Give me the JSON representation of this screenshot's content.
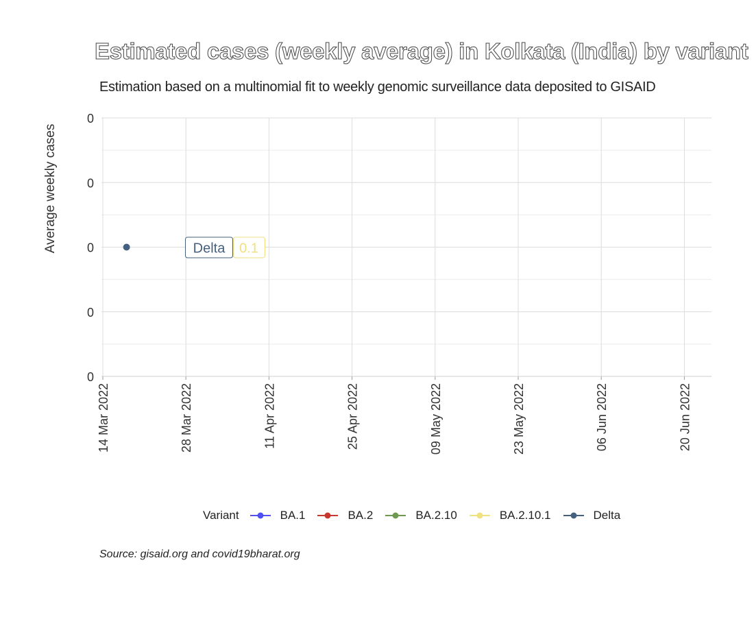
{
  "chart_data": {
    "type": "line",
    "title": "Estimated cases (weekly average) in Kolkata (India) by variant",
    "subtitle": "Estimation based on a multinomial fit to weekly genomic surveillance data deposited to GISAID",
    "ylabel": "Average weekly cases",
    "xlabel": "",
    "caption": "Source: gisaid.org and covid19bharat.org",
    "x_ticks": [
      "14 Mar 2022",
      "28 Mar 2022",
      "11 Apr 2022",
      "25 Apr 2022",
      "09 May 2022",
      "23 May 2022",
      "06 Jun 2022",
      "20 Jun 2022"
    ],
    "y_ticks": [
      "0",
      "0",
      "0",
      "0",
      "0"
    ],
    "grid": true,
    "legend_title": "Variant",
    "legend_position": "bottom",
    "series": [
      {
        "name": "BA.1",
        "color": "#5050f0",
        "points": []
      },
      {
        "name": "BA.2",
        "color": "#c8372d",
        "points": []
      },
      {
        "name": "BA.2.10",
        "color": "#6e9a50",
        "points": []
      },
      {
        "name": "BA.2.10.1",
        "color": "#f0e080",
        "points": []
      },
      {
        "name": "Delta",
        "color": "#44607e",
        "points": [
          {
            "x": "2022-03-18",
            "y": 0
          }
        ]
      }
    ],
    "annotations": [
      {
        "text": "Delta",
        "color": "#44607e"
      },
      {
        "text": "0.1",
        "color": "#f0e080"
      }
    ]
  }
}
